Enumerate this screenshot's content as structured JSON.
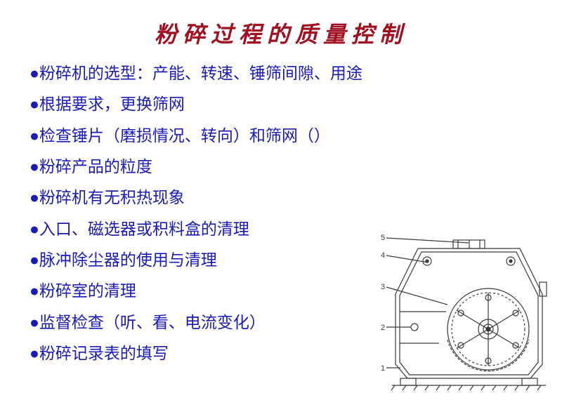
{
  "title": "粉碎过程的质量控制",
  "title_color": "#a01020",
  "title_fontsize": 32,
  "title_letter_spacing": 8,
  "bullet_color": "#1a1ab8",
  "text_color": "#1a1ab8",
  "text_fontsize": 23,
  "background_color": "#ffffff",
  "bullets": [
    {
      "indent": 0,
      "text": "粉碎机的选型：产能、转速、锤筛间隙、用途"
    },
    {
      "indent": 0,
      "text": "根据要求，更换筛网"
    },
    {
      "indent": 1,
      "text": "检查锤片（磨损情况、转向）和筛网（）"
    },
    {
      "indent": 1,
      "text": "粉碎产品的粒度"
    },
    {
      "indent": 0,
      "text": "粉碎机有无积热现象"
    },
    {
      "indent": 1,
      "text": "入口、磁选器或积料盒的清理"
    },
    {
      "indent": 1,
      "text": "脉冲除尘器的使用与清理"
    },
    {
      "indent": 1,
      "text": "粉碎室的清理"
    },
    {
      "indent": 1,
      "text": "监督检查（听、看、电流变化）"
    },
    {
      "indent": 1,
      "text": "粉碎记录表的填写"
    }
  ],
  "diagram": {
    "type": "technical-drawing",
    "description": "crusher-machine-cross-section",
    "stroke_color": "#3a3a3a",
    "stroke_width": 1.2,
    "labels": [
      "1",
      "2",
      "3",
      "4",
      "5"
    ],
    "label_fontsize": 11
  }
}
